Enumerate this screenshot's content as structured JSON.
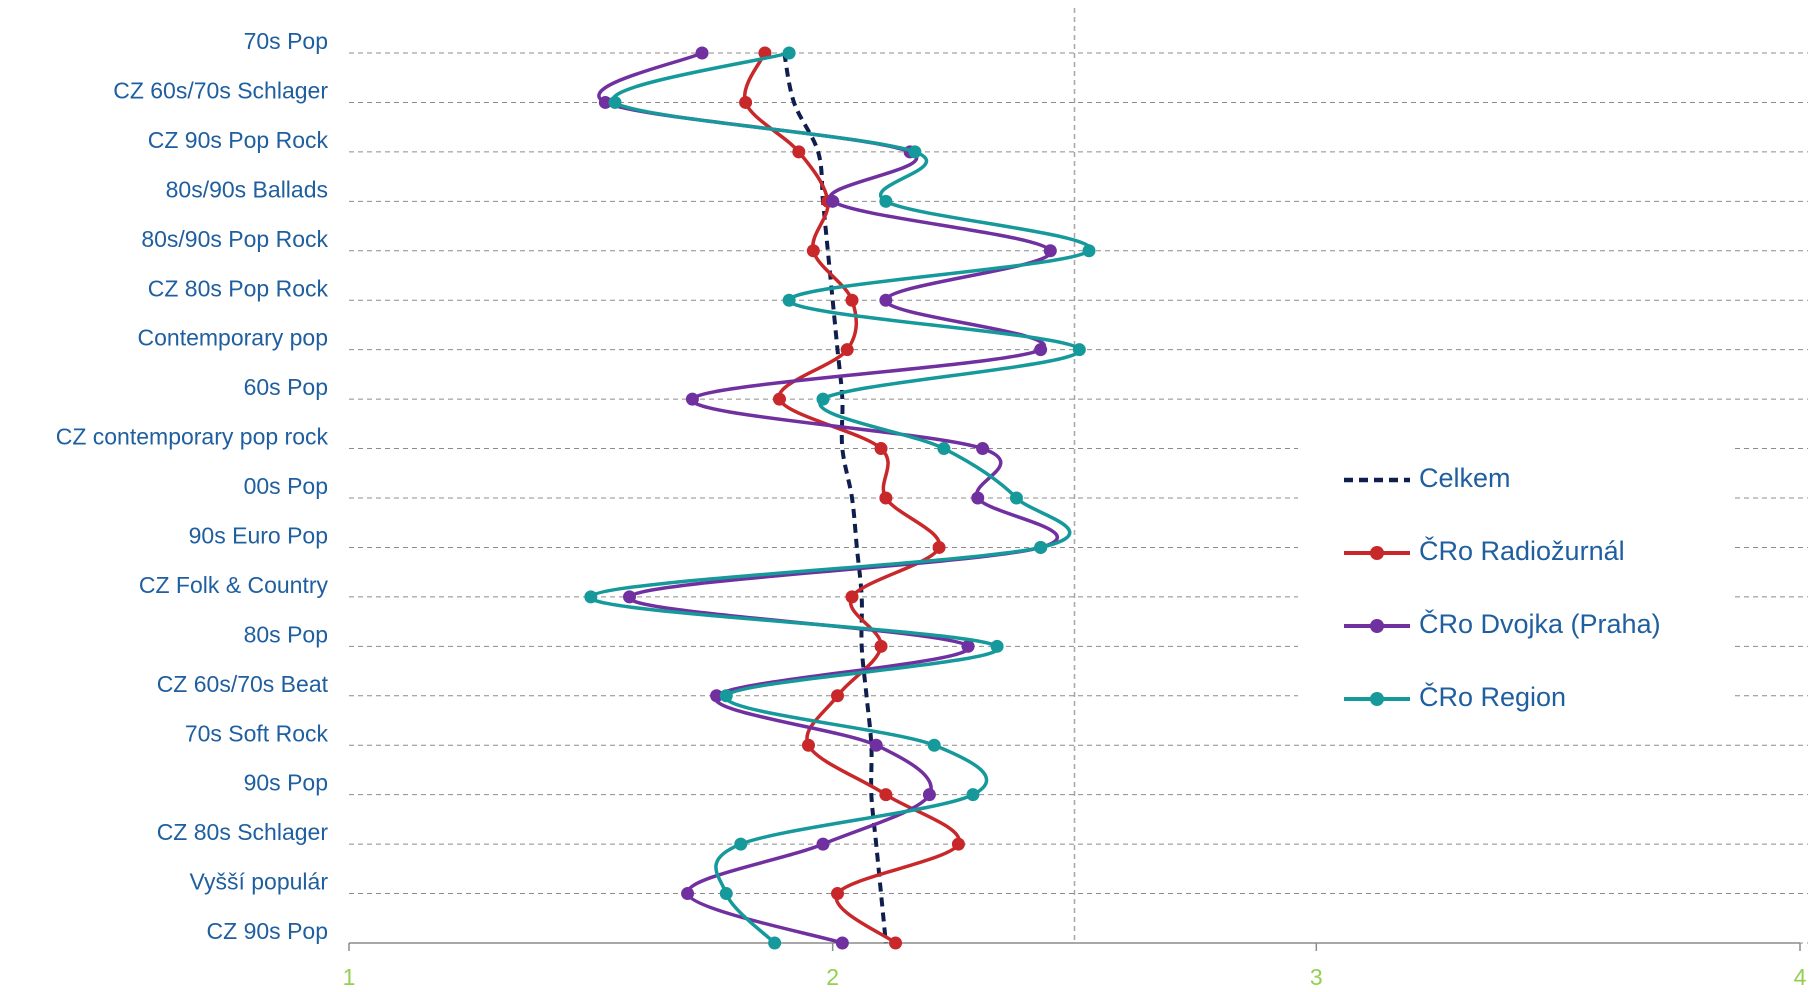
{
  "chart_data": {
    "type": "line",
    "orientation": "horizontal",
    "categories": [
      "70s Pop",
      "CZ 60s/70s Schlager",
      "CZ 90s Pop Rock",
      "80s/90s Ballads",
      "80s/90s Pop Rock",
      "CZ 80s Pop Rock",
      "Contemporary pop",
      "60s Pop",
      "CZ contemporary pop rock",
      "00s Pop",
      "90s Euro Pop",
      "CZ Folk & Country",
      "80s Pop",
      "CZ 60s/70s Beat",
      "70s Soft Rock",
      "90s Pop",
      "CZ 80s Schlager",
      "Vyšší populár",
      "CZ 90s Pop"
    ],
    "series": [
      {
        "name": "Celkem",
        "color": "#0e1f4d",
        "dashed": true,
        "markers": false,
        "values": [
          1.9,
          1.92,
          1.97,
          1.98,
          1.99,
          2.0,
          2.01,
          2.02,
          2.02,
          2.04,
          2.05,
          2.06,
          2.06,
          2.07,
          2.08,
          2.08,
          2.09,
          2.1,
          2.11
        ]
      },
      {
        "name": "ČRo Radiožurnál",
        "color": "#c8282a",
        "dashed": false,
        "markers": true,
        "values": [
          1.86,
          1.82,
          1.93,
          1.99,
          1.96,
          2.04,
          2.03,
          1.89,
          2.1,
          2.11,
          2.22,
          2.04,
          2.1,
          2.01,
          1.95,
          2.11,
          2.26,
          2.01,
          2.13
        ]
      },
      {
        "name": "ČRo Dvojka (Praha)",
        "color": "#7030a0",
        "dashed": false,
        "markers": true,
        "values": [
          1.73,
          1.53,
          2.16,
          2.0,
          2.45,
          2.11,
          2.43,
          1.71,
          2.31,
          2.3,
          2.43,
          1.58,
          2.28,
          1.76,
          2.09,
          2.2,
          1.98,
          1.7,
          2.02
        ]
      },
      {
        "name": "ČRo Region",
        "color": "#16999b",
        "dashed": false,
        "markers": true,
        "values": [
          1.91,
          1.55,
          2.17,
          2.11,
          2.53,
          1.91,
          2.51,
          1.98,
          2.23,
          2.38,
          2.43,
          1.5,
          2.34,
          1.78,
          2.21,
          2.29,
          1.81,
          1.78,
          1.88
        ]
      }
    ],
    "xlim": [
      1,
      4
    ],
    "xticks": [
      1,
      2,
      3,
      4
    ],
    "reference_line": 2.5,
    "grid": true,
    "legend_position": "right"
  }
}
